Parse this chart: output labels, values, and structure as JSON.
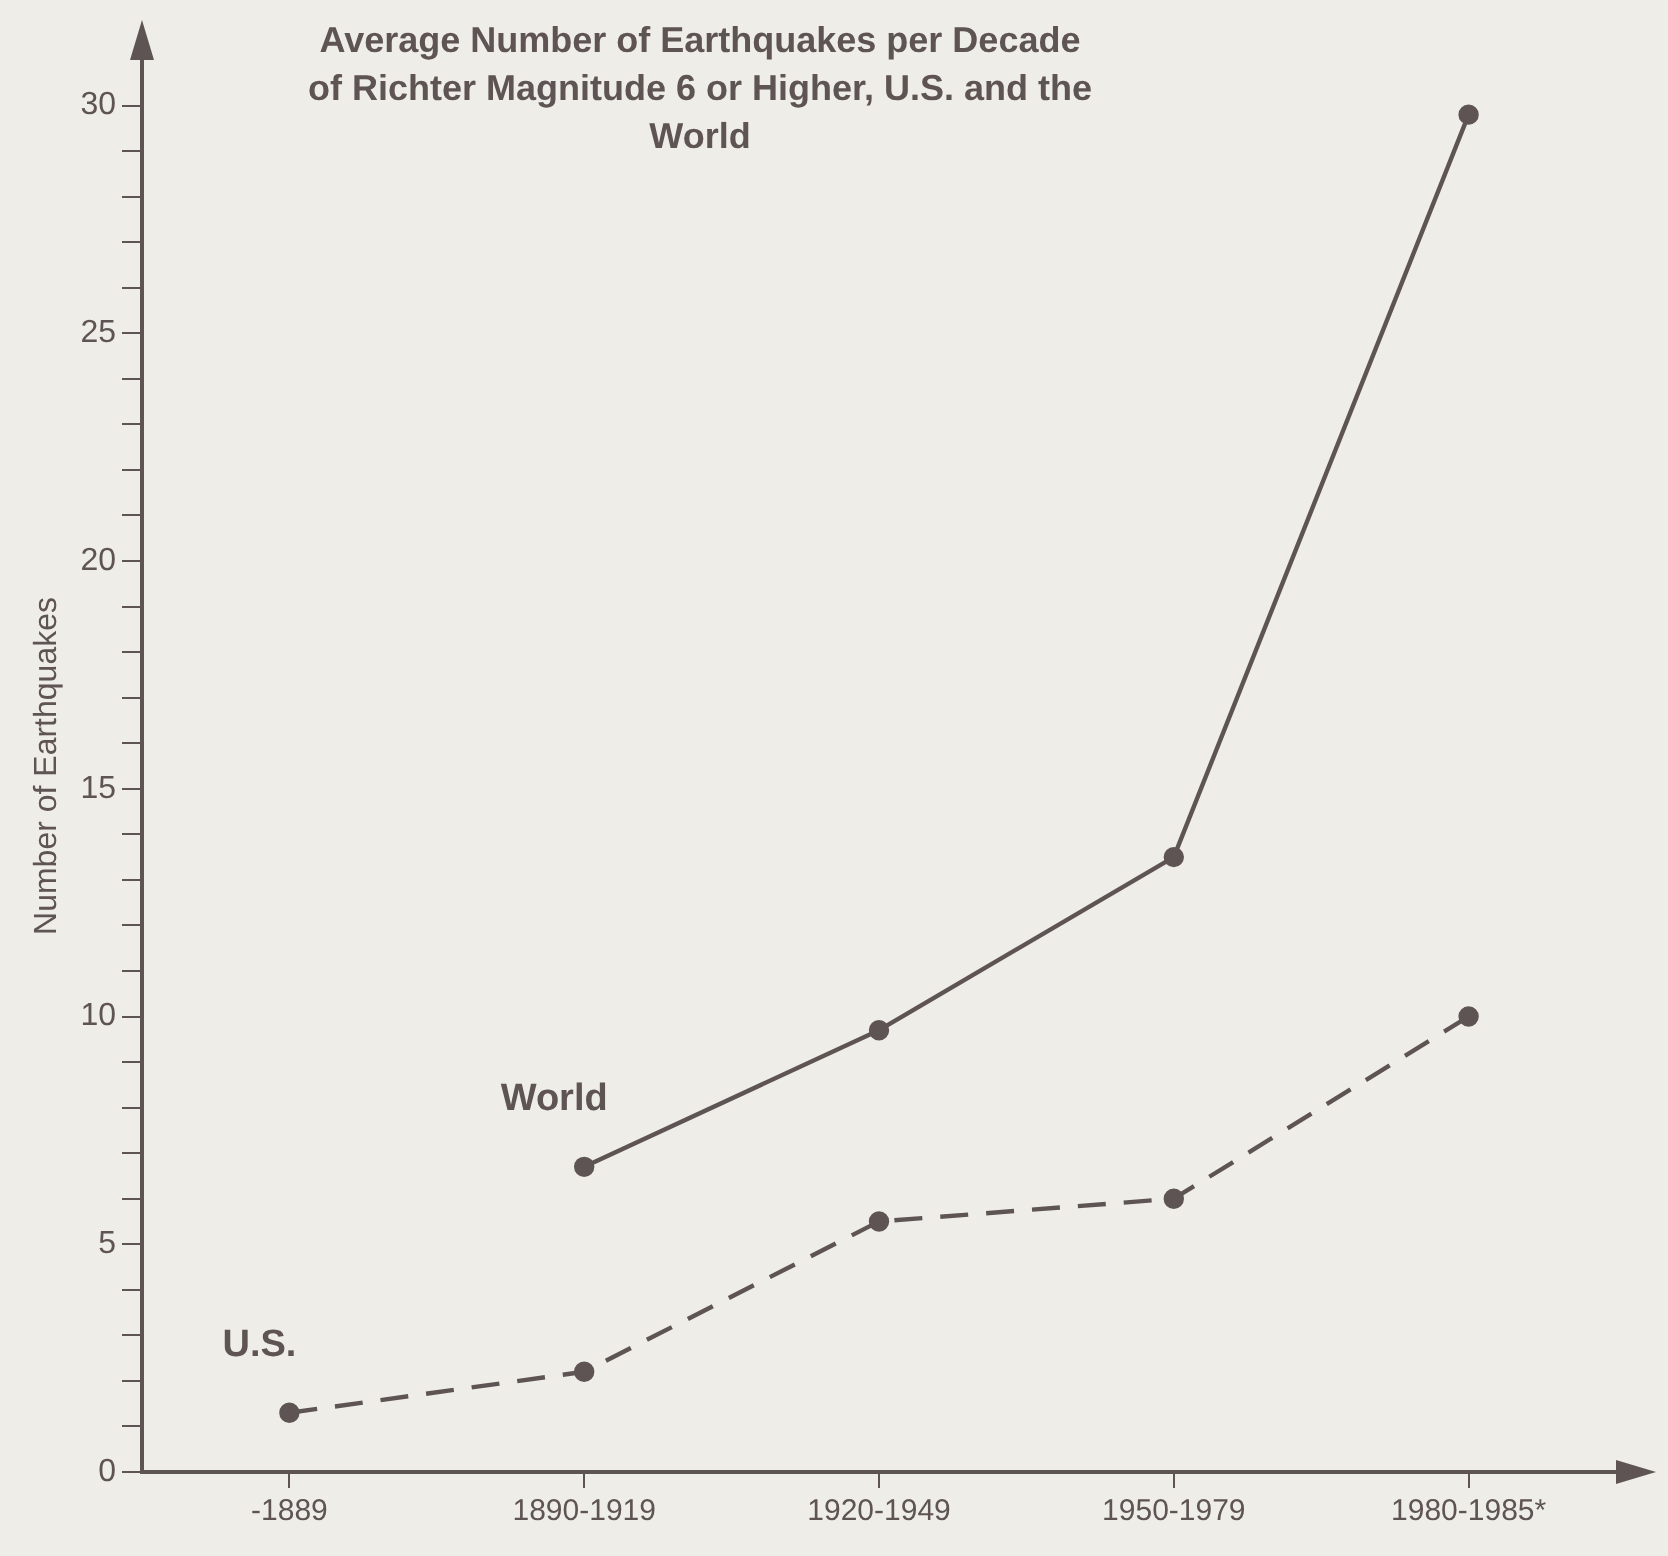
{
  "chart_data": {
    "type": "line",
    "title": "Average Number of Earthquakes per Decade of Richter Magnitude 6 or Higher, U.S. and the World",
    "ylabel": "Number of Earthquakes",
    "categories": [
      "-1889",
      "1890-1919",
      "1920-1949",
      "1950-1979",
      "1980-1985*"
    ],
    "series": [
      {
        "name": "World",
        "color": "#5e5454",
        "line_style": "solid",
        "values": [
          null,
          6.7,
          9.7,
          13.5,
          29.8
        ]
      },
      {
        "name": "U.S.",
        "color": "#5e5454",
        "line_style": "dashed",
        "values": [
          1.3,
          2.2,
          5.5,
          6.0,
          10.0
        ]
      }
    ],
    "ylim": [
      0,
      31
    ],
    "yticks": [
      0,
      {
        "value": 1,
        "label": null
      },
      {
        "value": 2,
        "label": null
      },
      {
        "value": 3,
        "label": null
      },
      {
        "value": 4,
        "label": null
      },
      5,
      {
        "value": 6,
        "label": null
      },
      {
        "value": 7,
        "label": null
      },
      {
        "value": 8,
        "label": null
      },
      {
        "value": 9,
        "label": null
      },
      10,
      {
        "value": 11,
        "label": null
      },
      {
        "value": 12,
        "label": null
      },
      {
        "value": 13,
        "label": null
      },
      {
        "value": 14,
        "label": null
      },
      15,
      {
        "value": 16,
        "label": null
      },
      {
        "value": 17,
        "label": null
      },
      {
        "value": 18,
        "label": null
      },
      {
        "value": 19,
        "label": null
      },
      20,
      {
        "value": 21,
        "label": null
      },
      {
        "value": 22,
        "label": null
      },
      {
        "value": 23,
        "label": null
      },
      {
        "value": 24,
        "label": null
      },
      25,
      {
        "value": 26,
        "label": null
      },
      {
        "value": 27,
        "label": null
      },
      {
        "value": 28,
        "label": null
      },
      {
        "value": 29,
        "label": null
      },
      30
    ],
    "marker": "circle",
    "grid": false,
    "legend": false
  }
}
